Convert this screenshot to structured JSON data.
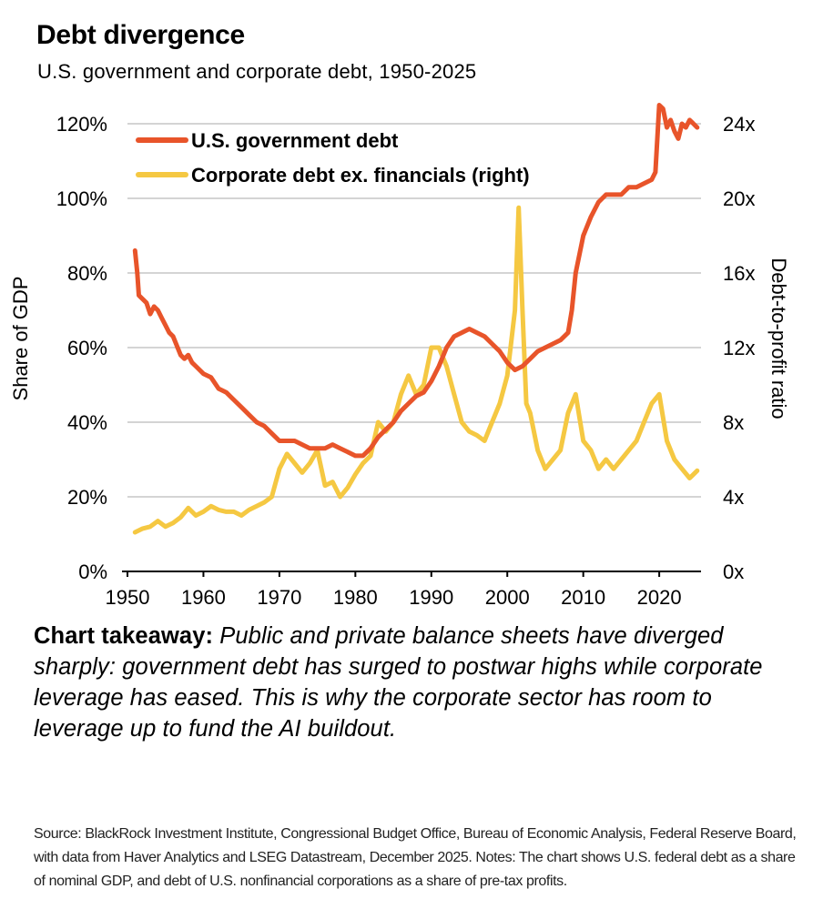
{
  "title": "Debt divergence",
  "subtitle": "U.S. government and corporate debt, 1950-2025",
  "takeaway": {
    "lead": "Chart takeaway:",
    "body": "Public and private balance sheets have diverged sharply: government debt has surged to postwar highs while corporate leverage has eased. This is why the corporate sector has room to leverage up to fund the AI buildout."
  },
  "source": "Source: BlackRock Investment Institute, Congressional Budget Office, Bureau of Economic Analysis, Federal Reserve Board, with data from Haver Analytics and LSEG Datastream, December 2025. Notes: The chart shows U.S. federal debt as a share of nominal GDP, and debt of U.S. nonfinancial corporations as a share of pre-tax profits.",
  "colors": {
    "government": "#e8542a",
    "corporate": "#f5c842",
    "grid": "#d4d4d4",
    "axis": "#000000"
  },
  "chart_data": {
    "type": "line",
    "xlim": [
      1950,
      2025.5
    ],
    "xticks": [
      1950,
      1960,
      1970,
      1980,
      1990,
      2000,
      2010,
      2020
    ],
    "y_left": {
      "label": "Share of GDP",
      "lim": [
        0,
        120
      ],
      "ticks": [
        0,
        20,
        40,
        60,
        80,
        100,
        120
      ],
      "tick_labels": [
        "0%",
        "20%",
        "40%",
        "60%",
        "80%",
        "100%",
        "120%"
      ]
    },
    "y_right": {
      "label": "Debt-to-profit ratio",
      "lim": [
        0,
        24
      ],
      "ticks": [
        0,
        4,
        8,
        12,
        16,
        20,
        24
      ],
      "tick_labels": [
        "0x",
        "4x",
        "8x",
        "12x",
        "16x",
        "20x",
        "24x"
      ]
    },
    "series": [
      {
        "name": "U.S. government debt",
        "axis": "left",
        "x": [
          1951,
          1951.3,
          1951.5,
          1952,
          1952.5,
          1953,
          1953.5,
          1954,
          1954.5,
          1955,
          1955.5,
          1956,
          1957,
          1957.5,
          1958,
          1958.5,
          1959,
          1960,
          1961,
          1962,
          1963,
          1964,
          1965,
          1966,
          1967,
          1968,
          1969,
          1970,
          1971,
          1972,
          1973,
          1974,
          1975,
          1976,
          1977,
          1978,
          1979,
          1980,
          1981,
          1982,
          1983,
          1984,
          1985,
          1986,
          1987,
          1988,
          1989,
          1990,
          1991,
          1992,
          1993,
          1994,
          1995,
          1996,
          1997,
          1998,
          1999,
          2000,
          2001,
          2002,
          2003,
          2004,
          2005,
          2006,
          2007,
          2008,
          2008.5,
          2009,
          2009.5,
          2010,
          2011,
          2012,
          2013,
          2014,
          2015,
          2016,
          2017,
          2018,
          2019,
          2019.5,
          2020,
          2020.5,
          2021,
          2021.5,
          2022,
          2022.5,
          2023,
          2023.5,
          2024,
          2024.5,
          2025
        ],
        "values": [
          86,
          80,
          74,
          73,
          72,
          69,
          71,
          70,
          68,
          66,
          64,
          63,
          58,
          57,
          58,
          56,
          55,
          53,
          52,
          49,
          48,
          46,
          44,
          42,
          40,
          39,
          37,
          35,
          35,
          35,
          34,
          33,
          33,
          33,
          34,
          33,
          32,
          31,
          31,
          33,
          36,
          38,
          40,
          43,
          45,
          47,
          48,
          51,
          55,
          60,
          63,
          64,
          65,
          64,
          63,
          61,
          59,
          56,
          54,
          55,
          57,
          59,
          60,
          61,
          62,
          64,
          70,
          80,
          85,
          90,
          95,
          99,
          101,
          101,
          101,
          103,
          103,
          104,
          105,
          107,
          125,
          124,
          119,
          121,
          118,
          116,
          120,
          119,
          121,
          120,
          119
        ]
      },
      {
        "name": "Corporate debt ex. financials (right)",
        "axis": "right",
        "x": [
          1951,
          1952,
          1953,
          1954,
          1955,
          1956,
          1957,
          1958,
          1959,
          1960,
          1961,
          1962,
          1963,
          1964,
          1965,
          1966,
          1967,
          1968,
          1969,
          1970,
          1971,
          1972,
          1973,
          1974,
          1975,
          1976,
          1977,
          1978,
          1979,
          1980,
          1981,
          1982,
          1983,
          1984,
          1985,
          1986,
          1987,
          1988,
          1989,
          1990,
          1991,
          1992,
          1993,
          1994,
          1995,
          1996,
          1997,
          1998,
          1999,
          2000,
          2001,
          2001.5,
          2002,
          2002.5,
          2003,
          2004,
          2005,
          2006,
          2007,
          2008,
          2009,
          2010,
          2011,
          2012,
          2013,
          2014,
          2015,
          2016,
          2017,
          2018,
          2019,
          2020,
          2021,
          2022,
          2023,
          2024,
          2025
        ],
        "values": [
          2.1,
          2.3,
          2.4,
          2.7,
          2.4,
          2.6,
          2.9,
          3.4,
          3.0,
          3.2,
          3.5,
          3.3,
          3.2,
          3.2,
          3.0,
          3.3,
          3.5,
          3.7,
          4.0,
          5.5,
          6.3,
          5.8,
          5.3,
          5.8,
          6.5,
          4.6,
          4.8,
          4.0,
          4.5,
          5.2,
          5.8,
          6.2,
          8.0,
          7.5,
          8.0,
          9.5,
          10.5,
          9.5,
          10.0,
          12.0,
          12.0,
          11.0,
          9.5,
          8.0,
          7.5,
          7.3,
          7.0,
          8.0,
          9.0,
          10.5,
          14.0,
          19.5,
          14.0,
          9.0,
          8.5,
          6.5,
          5.5,
          6.0,
          6.5,
          8.5,
          9.5,
          7.0,
          6.5,
          5.5,
          6.0,
          5.5,
          6.0,
          6.5,
          7.0,
          8.0,
          9.0,
          9.5,
          7.0,
          6.0,
          5.5,
          5.0,
          5.4
        ]
      }
    ]
  },
  "legend": {
    "government": "U.S. government debt",
    "corporate": "Corporate debt ex. financials (right)"
  }
}
